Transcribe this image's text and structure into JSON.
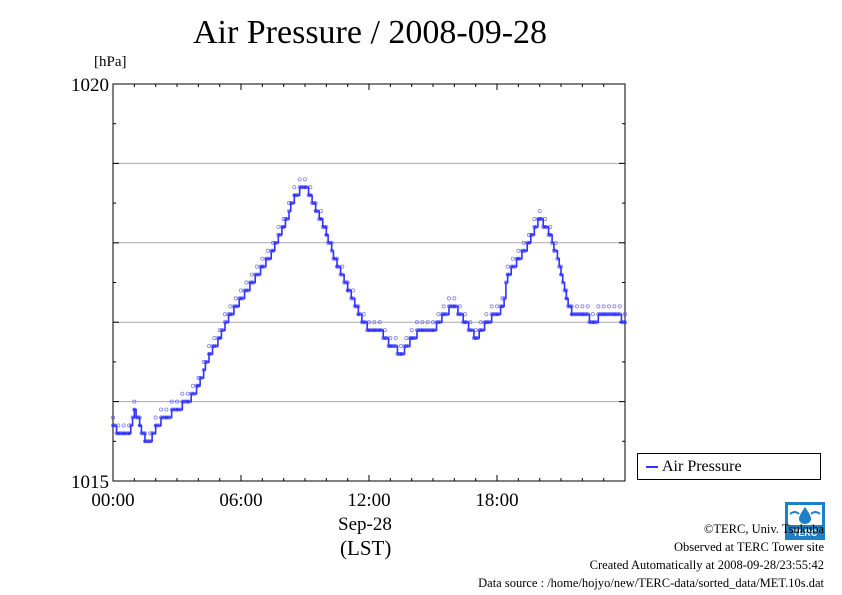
{
  "chart_data": {
    "type": "line",
    "title": "Air Pressure / 2008-09-28",
    "ylabel": "[hPa]",
    "xlabel": "(LST)",
    "x_date_label": "Sep-28",
    "ylim": [
      1015,
      1020
    ],
    "xlim_hours": [
      0,
      24
    ],
    "y_tick_labels": [
      "1015",
      "1020"
    ],
    "x_ticks": [
      {
        "hour": 0,
        "label": "00:00"
      },
      {
        "hour": 6,
        "label": "06:00"
      },
      {
        "hour": 12,
        "label": "12:00"
      },
      {
        "hour": 18,
        "label": "18:00"
      }
    ],
    "grid": true,
    "legend_position": "right",
    "series": [
      {
        "name": "Air Pressure",
        "color": "#3333ff",
        "x": [
          0,
          0.25,
          0.5,
          0.75,
          1,
          1.25,
          1.5,
          1.75,
          2,
          2.5,
          3,
          3.5,
          4,
          4.5,
          5,
          5.5,
          6,
          6.5,
          7,
          7.5,
          8,
          8.5,
          9,
          9.25,
          9.5,
          9.75,
          10,
          10.5,
          11,
          11.5,
          12,
          12.25,
          12.5,
          13,
          13.5,
          14,
          14.5,
          15,
          15.5,
          16,
          16.5,
          17,
          17.25,
          17.5,
          18,
          18.25,
          18.5,
          19,
          19.5,
          20,
          20.25,
          20.5,
          21,
          21.25,
          21.5,
          22,
          22.5,
          23,
          23.5,
          24
        ],
        "values": [
          1015.7,
          1015.6,
          1015.6,
          1015.6,
          1015.9,
          1015.7,
          1015.5,
          1015.5,
          1015.7,
          1015.8,
          1015.9,
          1016.0,
          1016.2,
          1016.6,
          1016.8,
          1017.1,
          1017.3,
          1017.5,
          1017.7,
          1017.9,
          1018.2,
          1018.6,
          1018.7,
          1018.6,
          1018.4,
          1018.3,
          1018.1,
          1017.7,
          1017.4,
          1017.1,
          1016.9,
          1016.9,
          1016.9,
          1016.7,
          1016.6,
          1016.8,
          1016.9,
          1016.9,
          1017.1,
          1017.2,
          1017.0,
          1016.8,
          1016.9,
          1017.0,
          1017.1,
          1017.2,
          1017.6,
          1017.8,
          1018.0,
          1018.3,
          1018.2,
          1018.1,
          1017.6,
          1017.3,
          1017.1,
          1017.1,
          1017.0,
          1017.1,
          1017.1,
          1017.0
        ]
      }
    ]
  },
  "credits": {
    "copyright": "©TERC, Univ. Tsukuba",
    "observed": "Observed at TERC Tower site",
    "created": "Created Automatically at 2008-09-28/23:55:42",
    "source": "Data source : /home/hojyo/new/TERC-data/sorted_data/MET.10s.dat"
  },
  "logo": {
    "text": "TERC",
    "color": "#1f7fc4",
    "icon": "terc-logo-icon"
  }
}
